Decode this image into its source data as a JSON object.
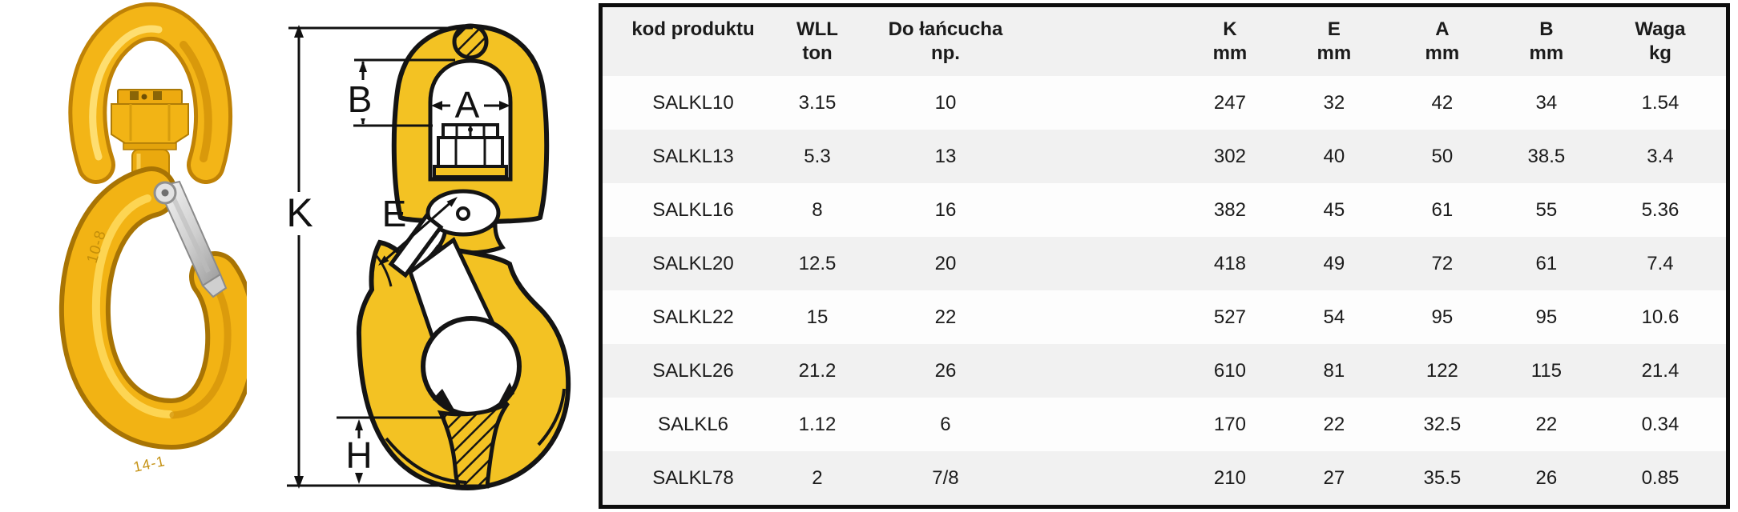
{
  "page": {
    "background": "#ffffff"
  },
  "photo": {
    "description": "Yellow swivel safety hook with silver latch",
    "markings": [
      "10-8",
      "14-1"
    ],
    "colors": {
      "body_yellow": "#f2b314",
      "shadow_yellow": "#a87404",
      "highlight": "#ffda5e",
      "latch_silver": "#d9d9d9"
    }
  },
  "diagram": {
    "labels": {
      "overall_height": "K",
      "eye_depth": "B",
      "eye_width": "A",
      "opening": "E",
      "seat_height": "H"
    },
    "colors": {
      "fill_yellow": "#f3c223",
      "line": "#141414"
    }
  },
  "table": {
    "columns": [
      {
        "key": "product-code",
        "label": "kod produktu",
        "unit": ""
      },
      {
        "key": "wll",
        "label": "WLL",
        "unit": "ton"
      },
      {
        "key": "chain-size",
        "label": "Do łańcucha",
        "unit": "np."
      },
      {
        "key": "k",
        "label": "K",
        "unit": "mm"
      },
      {
        "key": "e",
        "label": "E",
        "unit": "mm"
      },
      {
        "key": "a",
        "label": "A",
        "unit": "mm"
      },
      {
        "key": "b",
        "label": "B",
        "unit": "mm"
      },
      {
        "key": "weight",
        "label": "Waga",
        "unit": "kg"
      }
    ],
    "rows": [
      [
        "SALKL10",
        "3.15",
        "10",
        "247",
        "32",
        "42",
        "34",
        "1.54"
      ],
      [
        "SALKL13",
        "5.3",
        "13",
        "302",
        "40",
        "50",
        "38.5",
        "3.4"
      ],
      [
        "SALKL16",
        "8",
        "16",
        "382",
        "45",
        "61",
        "55",
        "5.36"
      ],
      [
        "SALKL20",
        "12.5",
        "20",
        "418",
        "49",
        "72",
        "61",
        "7.4"
      ],
      [
        "SALKL22",
        "15",
        "22",
        "527",
        "54",
        "95",
        "95",
        "10.6"
      ],
      [
        "SALKL26",
        "21.2",
        "26",
        "610",
        "81",
        "122",
        "115",
        "21.4"
      ],
      [
        "SALKL6",
        "1.12",
        "6",
        "170",
        "22",
        "32.5",
        "22",
        "0.34"
      ],
      [
        "SALKL78",
        "2",
        "7/8",
        "210",
        "27",
        "35.5",
        "26",
        "0.85"
      ]
    ],
    "style": {
      "border": "#0d0d0d",
      "stripe": "#f1f1f1",
      "row_white": "#fdfdfd",
      "text": "#1b1b1b"
    }
  }
}
